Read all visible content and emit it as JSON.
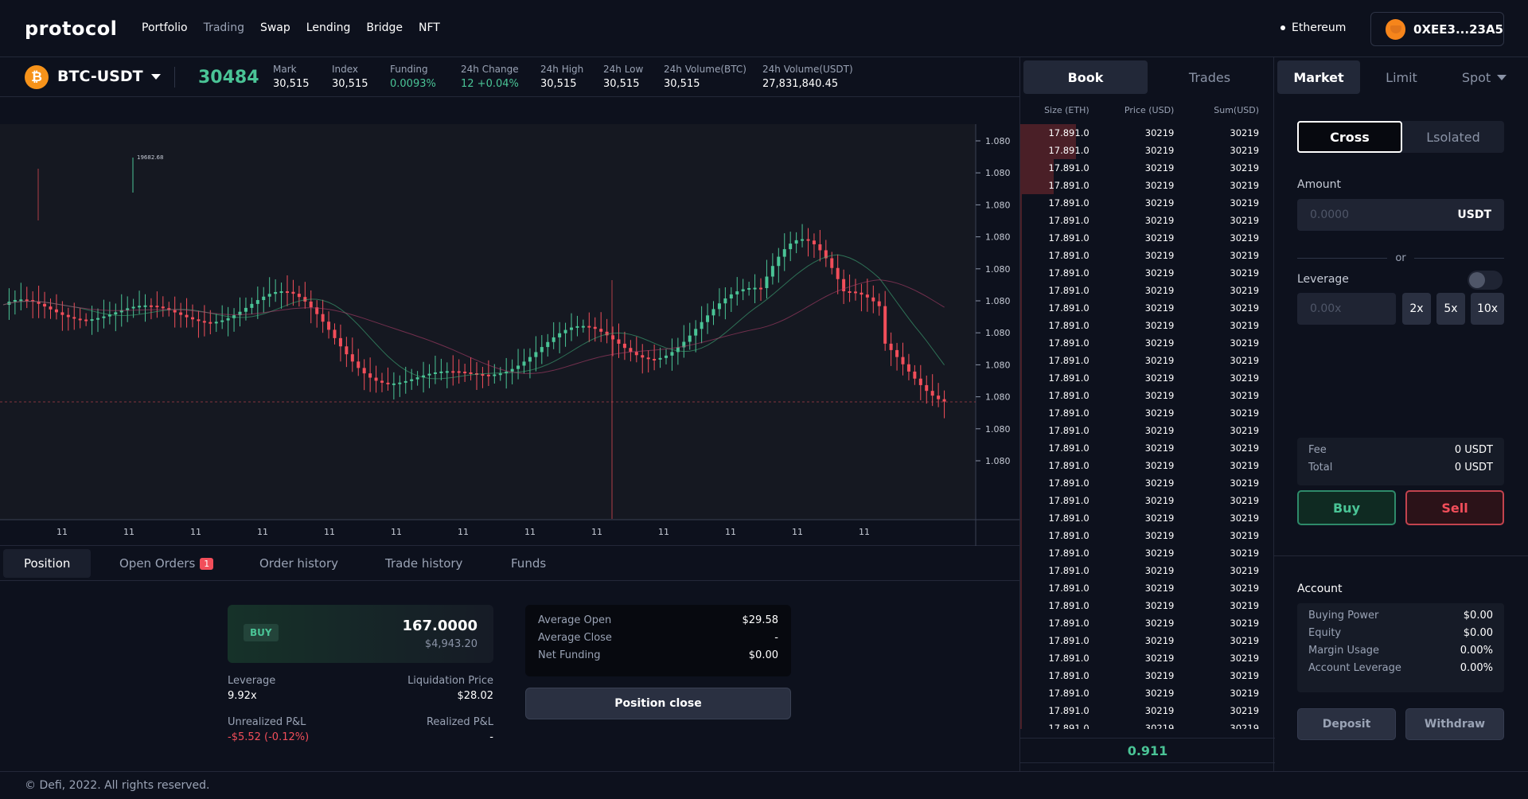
{
  "header": {
    "logo": "protocol",
    "nav": [
      "Portfolio",
      "Trading",
      "Swap",
      "Lending",
      "Bridge",
      "NFT"
    ],
    "active_nav": "Trading",
    "network": "Ethereum",
    "wallet": "0XEE3...23A5"
  },
  "ticker": {
    "coin_symbol": "₿",
    "pair": "BTC-USDT",
    "price": "30484",
    "stats": [
      {
        "label": "Mark",
        "value": "30,515"
      },
      {
        "label": "Index",
        "value": "30,515"
      },
      {
        "label": "Funding",
        "value": "0.0093%",
        "color": "green"
      },
      {
        "label": "24h Change",
        "value": "12 +0.04%",
        "color": "green"
      },
      {
        "label": "24h High",
        "value": "30,515"
      },
      {
        "label": "24h Low",
        "value": "30,515"
      },
      {
        "label": "24h Volume(BTC)",
        "value": "30,515"
      },
      {
        "label": "24h Volume(USDT)",
        "value": "27,831,840.45"
      }
    ]
  },
  "chart_data": {
    "type": "candlestick",
    "y_tick_labels": [
      "1.080",
      "1.080",
      "1.080",
      "1.080",
      "1.080",
      "1.080",
      "1.080",
      "1.080",
      "1.080",
      "1.080",
      "1.080"
    ],
    "x_tick_labels": [
      "11",
      "11",
      "11",
      "11",
      "11",
      "11",
      "11",
      "11",
      "11",
      "11",
      "11",
      "11",
      "11"
    ],
    "annotation": "19682.68",
    "up_color": "#4ac496",
    "down_color": "#f24e5a"
  },
  "orders": {
    "tabs": [
      "Position",
      "Open Orders",
      "Order history",
      "Trade history",
      "Funds"
    ],
    "open_orders_count": "1"
  },
  "position": {
    "side": "BUY",
    "amount": "167.0000",
    "usd": "$4,943.20",
    "leverage_label": "Leverage",
    "leverage": "9.92x",
    "liq_label": "Liquidation Price",
    "liq": "$28.02",
    "upnl_label": "Unrealized P&L",
    "upnl": "-$5.52 (-0.12%)",
    "rpnl_label": "Realized P&L",
    "rpnl": "-",
    "avg": [
      {
        "label": "Average Open",
        "value": "$29.58"
      },
      {
        "label": "Average Close",
        "value": "-"
      },
      {
        "label": "Net Funding",
        "value": "$0.00"
      }
    ],
    "close_button": "Position close"
  },
  "book": {
    "tabs": [
      "Book",
      "Trades"
    ],
    "headers": [
      "Size (ETH)",
      "Price (USD)",
      "Sum(USD)"
    ],
    "row": {
      "size": "17.891.0",
      "price": "30219",
      "sum": "30219"
    },
    "row_count": 35,
    "mid_price": "0.911"
  },
  "trade": {
    "tabs": [
      "Market",
      "Limit",
      "Spot"
    ],
    "margin": [
      "Cross",
      "Lsolated"
    ],
    "amount_label": "Amount",
    "amount_placeholder": "0.0000",
    "amount_unit": "USDT",
    "or": "or",
    "leverage_label": "Leverage",
    "leverage_placeholder": "0.00x",
    "leverage_options": [
      "2x",
      "5x",
      "10x"
    ],
    "fee": [
      {
        "label": "Fee",
        "value": "0 USDT"
      },
      {
        "label": "Total",
        "value": "0 USDT"
      }
    ],
    "buy": "Buy",
    "sell": "Sell",
    "account_label": "Account",
    "account": [
      {
        "label": "Buying Power",
        "value": "$0.00"
      },
      {
        "label": "Equity",
        "value": "$0.00"
      },
      {
        "label": "Margin Usage",
        "value": "0.00%"
      },
      {
        "label": "Account Leverage",
        "value": "0.00%"
      }
    ],
    "deposit": "Deposit",
    "withdraw": "Withdraw"
  },
  "footer": "© Defi, 2022. All rights reserved."
}
